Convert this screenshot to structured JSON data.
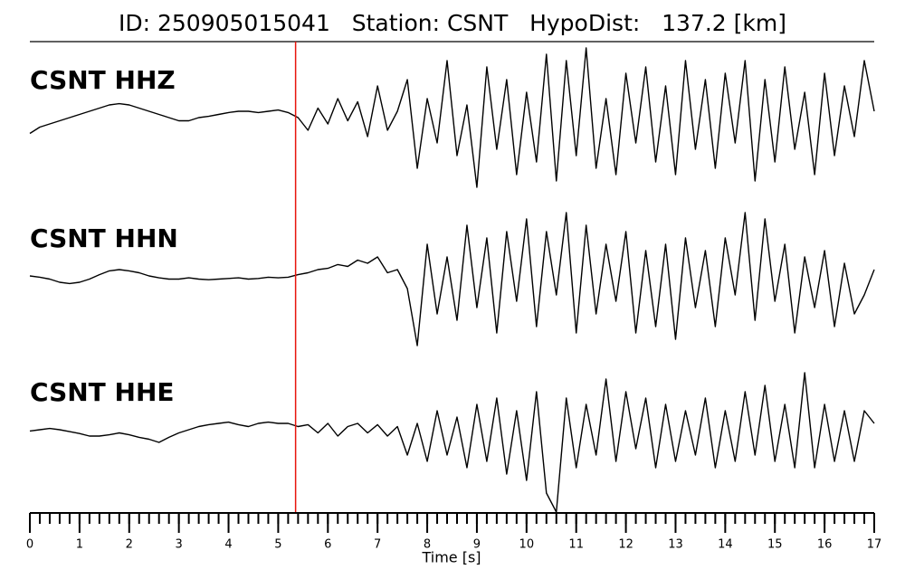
{
  "chart_data": {
    "type": "line",
    "title": "ID: 250905015041   Station: CSNT   HypoDist:   137.2 [km]",
    "x_label": "Time [s]",
    "xlim": [
      0,
      17
    ],
    "xticks": [
      0,
      1,
      2,
      3,
      4,
      5,
      6,
      7,
      8,
      9,
      10,
      11,
      12,
      13,
      14,
      15,
      16,
      17
    ],
    "x": [
      0,
      0.2,
      0.4,
      0.6,
      0.8,
      1,
      1.2,
      1.4,
      1.6,
      1.8,
      2,
      2.2,
      2.4,
      2.6,
      2.8,
      3,
      3.2,
      3.4,
      3.6,
      3.8,
      4,
      4.2,
      4.4,
      4.6,
      4.8,
      5,
      5.2,
      5.4,
      5.6,
      5.8,
      6,
      6.2,
      6.4,
      6.6,
      6.8,
      7,
      7.2,
      7.4,
      7.6,
      7.8,
      8,
      8.2,
      8.4,
      8.6,
      8.8,
      9,
      9.2,
      9.4,
      9.6,
      9.8,
      10,
      10.2,
      10.4,
      10.6,
      10.8,
      11,
      11.2,
      11.4,
      11.6,
      11.8,
      12,
      12.2,
      12.4,
      12.6,
      12.8,
      13,
      13.2,
      13.4,
      13.6,
      13.8,
      14,
      14.2,
      14.4,
      14.6,
      14.8,
      15,
      15.2,
      15.4,
      15.6,
      15.8,
      16,
      16.2,
      16.4,
      16.6,
      16.8,
      17
    ],
    "label_color": "#4c9a0a",
    "markers": [
      {
        "x": 5.35,
        "color": "#e8140c"
      }
    ],
    "series": [
      {
        "name": "CSNT HHZ",
        "color": "#000000",
        "values": [
          -0.25,
          -0.15,
          -0.1,
          -0.05,
          0,
          0.05,
          0.1,
          0.15,
          0.2,
          0.22,
          0.2,
          0.15,
          0.1,
          0.05,
          0,
          -0.05,
          -0.05,
          0,
          0.02,
          0.05,
          0.08,
          0.1,
          0.1,
          0.08,
          0.1,
          0.12,
          0.08,
          0.0,
          -0.2,
          0.15,
          -0.1,
          0.3,
          -0.05,
          0.25,
          -0.3,
          0.5,
          -0.2,
          0.1,
          0.6,
          -0.8,
          0.3,
          -0.4,
          0.9,
          -0.6,
          0.2,
          -1.1,
          0.8,
          -0.5,
          0.6,
          -0.9,
          0.4,
          -0.7,
          1.0,
          -1.0,
          0.9,
          -0.6,
          1.1,
          -0.8,
          0.3,
          -0.9,
          0.7,
          -0.4,
          0.8,
          -0.7,
          0.5,
          -0.9,
          0.9,
          -0.5,
          0.6,
          -0.8,
          0.7,
          -0.4,
          0.9,
          -1.0,
          0.6,
          -0.7,
          0.8,
          -0.5,
          0.4,
          -0.9,
          0.7,
          -0.6,
          0.5,
          -0.3,
          0.9,
          0.1
        ]
      },
      {
        "name": "CSNT HHN",
        "color": "#000000",
        "values": [
          0,
          -0.02,
          -0.05,
          -0.1,
          -0.12,
          -0.1,
          -0.05,
          0.02,
          0.08,
          0.1,
          0.08,
          0.05,
          0,
          -0.03,
          -0.05,
          -0.05,
          -0.03,
          -0.05,
          -0.06,
          -0.05,
          -0.04,
          -0.03,
          -0.05,
          -0.04,
          -0.02,
          -0.03,
          -0.02,
          0.02,
          0.05,
          0.1,
          0.12,
          0.18,
          0.15,
          0.25,
          0.2,
          0.3,
          0.05,
          0.1,
          -0.2,
          -1.1,
          0.5,
          -0.6,
          0.3,
          -0.7,
          0.8,
          -0.5,
          0.6,
          -0.9,
          0.7,
          -0.4,
          0.9,
          -0.8,
          0.7,
          -0.3,
          1.0,
          -0.9,
          0.8,
          -0.6,
          0.5,
          -0.4,
          0.7,
          -0.9,
          0.4,
          -0.8,
          0.5,
          -1.0,
          0.6,
          -0.5,
          0.4,
          -0.8,
          0.6,
          -0.3,
          1.0,
          -0.7,
          0.9,
          -0.4,
          0.5,
          -0.9,
          0.3,
          -0.5,
          0.4,
          -0.8,
          0.2,
          -0.6,
          -0.3,
          0.1
        ]
      },
      {
        "name": "CSNT HHE",
        "color": "#000000",
        "values": [
          -0.02,
          0,
          0.02,
          0,
          -0.03,
          -0.06,
          -0.1,
          -0.1,
          -0.08,
          -0.05,
          -0.08,
          -0.12,
          -0.15,
          -0.2,
          -0.12,
          -0.05,
          0,
          0.05,
          0.08,
          0.1,
          0.12,
          0.08,
          0.05,
          0.1,
          0.12,
          0.1,
          0.1,
          0.05,
          0.08,
          -0.05,
          0.1,
          -0.1,
          0.05,
          0.1,
          -0.05,
          0.08,
          -0.1,
          0.05,
          -0.4,
          0.1,
          -0.5,
          0.3,
          -0.4,
          0.2,
          -0.6,
          0.4,
          -0.5,
          0.5,
          -0.7,
          0.3,
          -0.8,
          0.6,
          -1.0,
          -1.3,
          0.5,
          -0.6,
          0.4,
          -0.4,
          0.8,
          -0.5,
          0.6,
          -0.3,
          0.5,
          -0.6,
          0.4,
          -0.5,
          0.3,
          -0.4,
          0.5,
          -0.6,
          0.3,
          -0.5,
          0.6,
          -0.4,
          0.7,
          -0.5,
          0.4,
          -0.6,
          0.9,
          -0.6,
          0.4,
          -0.5,
          0.3,
          -0.5,
          0.3,
          0.1
        ]
      }
    ]
  }
}
